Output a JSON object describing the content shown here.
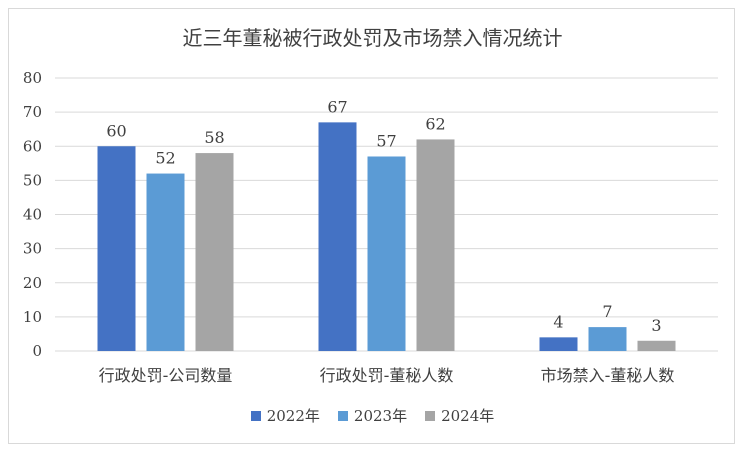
{
  "chart_data": {
    "type": "bar",
    "title": "近三年董秘被行政处罚及市场禁入情况统计",
    "categories": [
      "行政处罚-公司数量",
      "行政处罚-董秘人数",
      "市场禁入-董秘人数"
    ],
    "series": [
      {
        "name": "2022年",
        "color": "#4472c4",
        "values": [
          60,
          67,
          4
        ]
      },
      {
        "name": "2023年",
        "color": "#5b9bd5",
        "values": [
          52,
          57,
          7
        ]
      },
      {
        "name": "2024年",
        "color": "#a5a5a5",
        "values": [
          58,
          62,
          3
        ]
      }
    ],
    "ylim": [
      0,
      80
    ],
    "yticks": [
      0,
      10,
      20,
      30,
      40,
      50,
      60,
      70,
      80
    ],
    "grid": true,
    "legend": "bottom"
  }
}
